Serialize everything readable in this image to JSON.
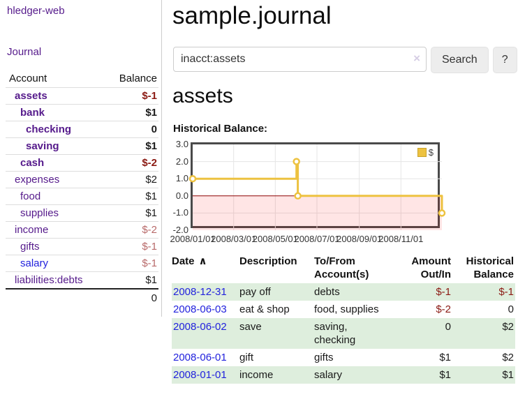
{
  "app": {
    "brand": "hledger-web"
  },
  "sidebar": {
    "journal_label": "Journal",
    "accounts_table": {
      "headers": [
        "Account",
        "Balance"
      ],
      "rows": [
        {
          "account": "assets",
          "indent": 1,
          "bold": true,
          "balance": "$-1",
          "balance_class": "neg-strong",
          "link": "purple"
        },
        {
          "account": "bank",
          "indent": 2,
          "bold": true,
          "balance": "$1",
          "balance_class": "",
          "link": "purple"
        },
        {
          "account": "checking",
          "indent": 3,
          "bold": true,
          "balance": "0",
          "balance_class": "",
          "link": "purple"
        },
        {
          "account": "saving",
          "indent": 3,
          "bold": true,
          "balance": "$1",
          "balance_class": "",
          "link": "purple"
        },
        {
          "account": "cash",
          "indent": 2,
          "bold": true,
          "balance": "$-2",
          "balance_class": "neg-strong",
          "link": "purple"
        },
        {
          "account": "expenses",
          "indent": 1,
          "bold": false,
          "balance": "$2",
          "balance_class": "",
          "link": "purple"
        },
        {
          "account": "food",
          "indent": 2,
          "bold": false,
          "balance": "$1",
          "balance_class": "",
          "link": "purple"
        },
        {
          "account": "supplies",
          "indent": 2,
          "bold": false,
          "balance": "$1",
          "balance_class": "",
          "link": "purple"
        },
        {
          "account": "income",
          "indent": 1,
          "bold": false,
          "balance": "$-2",
          "balance_class": "neg-soft",
          "link": "purple"
        },
        {
          "account": "gifts",
          "indent": 2,
          "bold": false,
          "balance": "$-1",
          "balance_class": "neg-soft",
          "link": "purple"
        },
        {
          "account": "salary",
          "indent": 2,
          "bold": false,
          "balance": "$-1",
          "balance_class": "neg-soft",
          "link": "blue"
        },
        {
          "account": "liabilities:debts",
          "indent": 1,
          "bold": false,
          "balance": "$1",
          "balance_class": "",
          "link": "purple"
        }
      ],
      "total": "0"
    }
  },
  "main": {
    "title": "sample.journal",
    "search": {
      "value": "inacct:assets",
      "clear_icon": "×",
      "button_label": "Search",
      "help_label": "?"
    },
    "section_title": "assets"
  },
  "chart_data": {
    "type": "line",
    "style": "step-after",
    "title": "Historical Balance:",
    "series": [
      {
        "name": "$",
        "color": "#edc240",
        "points": [
          [
            "2008-01-01",
            1
          ],
          [
            "2008-06-01",
            2
          ],
          [
            "2008-06-03",
            0
          ],
          [
            "2008-12-31",
            -1
          ]
        ]
      }
    ],
    "x_ticks": [
      "2008/01/01",
      "2008/03/01",
      "2008/05/01",
      "2008/07/01",
      "2008/09/01",
      "2008/11/01"
    ],
    "y_ticks": [
      "3.0",
      "2.0",
      "1.0",
      "0.0",
      "-1.0",
      "-2.0"
    ],
    "ylim": [
      -2,
      3
    ],
    "x_range": [
      "2008-01-01",
      "2008-12-31"
    ],
    "grid": true,
    "legend": {
      "label": "$",
      "position": "top-right"
    },
    "negative_region_fill": "rgba(255,0,0,0.10)",
    "zero_line_color": "#8b0000"
  },
  "register": {
    "headers": {
      "date": "Date",
      "sort_icon": "∧",
      "description": "Description",
      "accounts": "To/From Account(s)",
      "amount": "Amount Out/In",
      "balance": "Historical Balance"
    },
    "rows": [
      {
        "date": "2008-12-31",
        "description": "pay off",
        "accounts": "debts",
        "amount": "$-1",
        "amount_neg": true,
        "balance": "$-1",
        "balance_neg": true
      },
      {
        "date": "2008-06-03",
        "description": "eat & shop",
        "accounts": "food, supplies",
        "amount": "$-2",
        "amount_neg": true,
        "balance": "0",
        "balance_neg": false
      },
      {
        "date": "2008-06-02",
        "description": "save",
        "accounts": "saving, checking",
        "amount": "0",
        "amount_neg": false,
        "balance": "$2",
        "balance_neg": false
      },
      {
        "date": "2008-06-01",
        "description": "gift",
        "accounts": "gifts",
        "amount": "$1",
        "amount_neg": false,
        "balance": "$2",
        "balance_neg": false
      },
      {
        "date": "2008-01-01",
        "description": "income",
        "accounts": "salary",
        "amount": "$1",
        "amount_neg": false,
        "balance": "$1",
        "balance_neg": false
      }
    ]
  },
  "colors": {
    "accent_purple": "#551a8b",
    "link_blue": "#2222dd",
    "negative_strong": "#8b1a13",
    "negative_soft": "#b86a6a",
    "row_stripe_green": "#deeedd",
    "series_yellow": "#edc240",
    "grid_line": "#e5e5e5",
    "chart_border": "#4a4a4a"
  }
}
